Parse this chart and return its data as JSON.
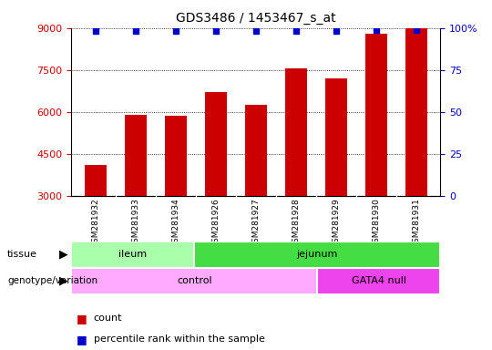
{
  "title": "GDS3486 / 1453467_s_at",
  "samples": [
    "GSM281932",
    "GSM281933",
    "GSM281934",
    "GSM281926",
    "GSM281927",
    "GSM281928",
    "GSM281929",
    "GSM281930",
    "GSM281931"
  ],
  "counts": [
    4100,
    5900,
    5850,
    6700,
    6250,
    7550,
    7200,
    8800,
    9000
  ],
  "percentile_ranks": [
    98,
    98,
    98,
    98,
    98,
    98,
    98,
    99,
    99
  ],
  "bar_color": "#cc0000",
  "dot_color": "#0000cc",
  "ylim_left": [
    3000,
    9000
  ],
  "ylim_right": [
    0,
    100
  ],
  "yticks_left": [
    3000,
    4500,
    6000,
    7500,
    9000
  ],
  "yticks_right": [
    0,
    25,
    50,
    75,
    100
  ],
  "tissue_groups": [
    {
      "label": "ileum",
      "start": 0,
      "end": 3,
      "color": "#aaffaa"
    },
    {
      "label": "jejunum",
      "start": 3,
      "end": 9,
      "color": "#44dd44"
    }
  ],
  "genotype_groups": [
    {
      "label": "control",
      "start": 0,
      "end": 6,
      "color": "#ffaaff"
    },
    {
      "label": "GATA4 null",
      "start": 6,
      "end": 9,
      "color": "#ee44ee"
    }
  ],
  "tissue_label": "tissue",
  "genotype_label": "genotype/variation",
  "legend_count": "count",
  "legend_percentile": "percentile rank within the sample",
  "bar_color_legend": "#cc0000",
  "dot_color_legend": "#0000cc",
  "left_tick_color": "#cc0000",
  "right_tick_color": "#0000cc",
  "sample_area_color": "#dddddd",
  "grid_linestyle": "dotted"
}
